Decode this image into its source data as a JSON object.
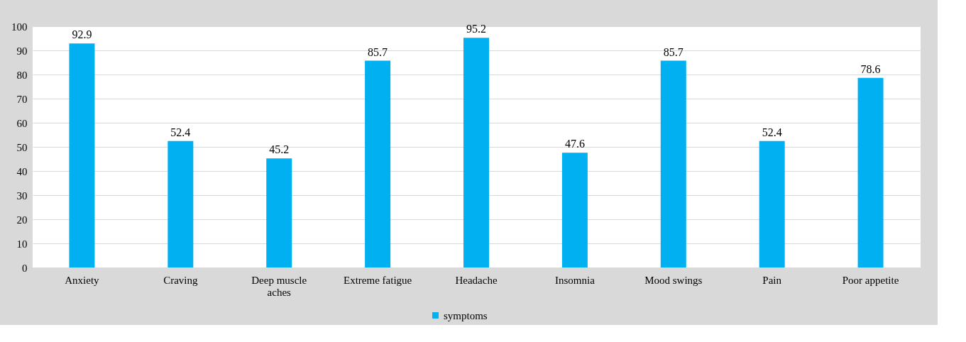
{
  "chart_data": {
    "type": "bar",
    "categories": [
      "Anxiety",
      "Craving",
      "Deep muscle aches",
      "Extreme fatigue",
      "Headache",
      "Insomnia",
      "Mood swings",
      "Pain",
      "Poor appetite"
    ],
    "series": [
      {
        "name": "symptoms",
        "color": "#00b0f0",
        "values": [
          92.9,
          52.4,
          45.2,
          85.7,
          95.2,
          47.6,
          85.7,
          52.4,
          78.6
        ]
      }
    ],
    "ylim": [
      0,
      100
    ],
    "yticks": [
      0,
      10,
      20,
      30,
      40,
      50,
      60,
      70,
      80,
      90,
      100
    ],
    "grid": "y",
    "legend": "bottom",
    "data_labels": true
  }
}
